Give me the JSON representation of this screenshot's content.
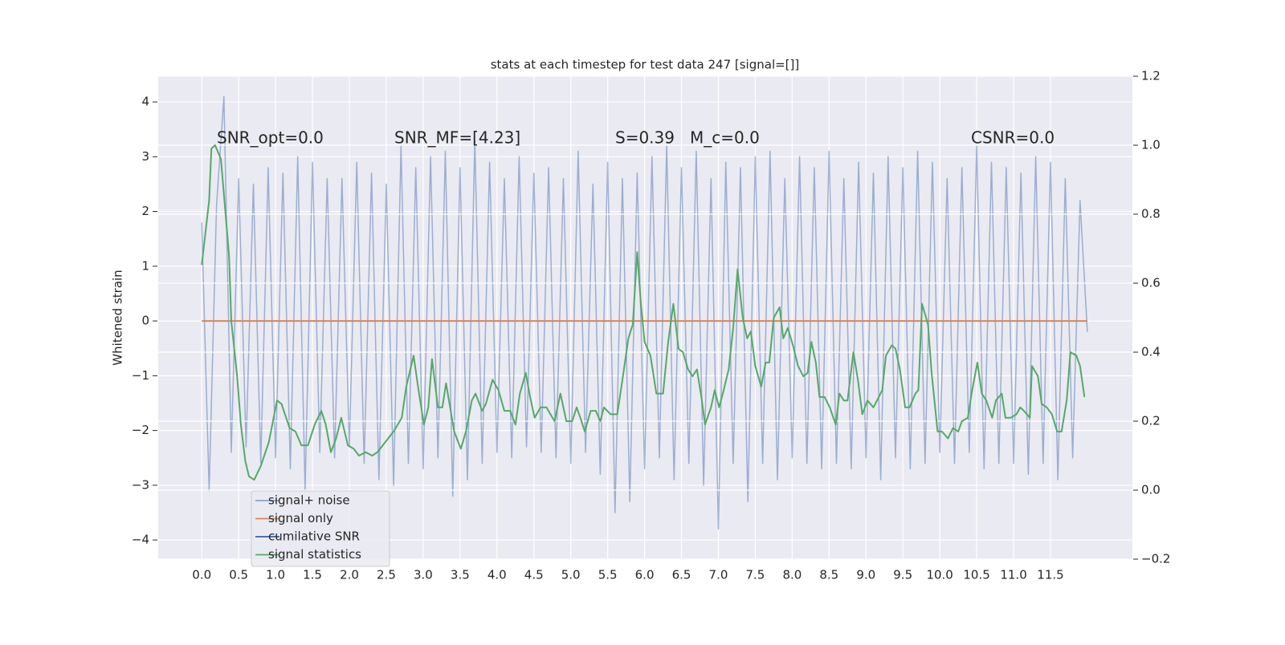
{
  "chart_data": {
    "type": "line",
    "title": "stats at each timestep for test data 247 [signal=[]]",
    "y_label": "Whitened strain",
    "annotations": [
      "SNR_opt=0.0",
      "SNR_MF=[4.23]",
      "S=0.39",
      "M_c=0.0",
      "CSNR=0.0"
    ],
    "background": "#eaeaf2",
    "grid": true,
    "legend_loc": "lower left",
    "xlim": [
      -0.59,
      12.61
    ],
    "ylim": [
      -4.35,
      4.47
    ],
    "y2lim": [
      -0.2,
      1.2
    ],
    "xticks": [
      {
        "value": 0,
        "label": "0.0"
      },
      0.5,
      {
        "value": 1,
        "label": "1.0"
      },
      1.5,
      {
        "value": 2,
        "label": "2.0"
      },
      2.5,
      {
        "value": 3,
        "label": "3.0"
      },
      3.5,
      {
        "value": 4,
        "label": "4.0"
      },
      4.5,
      {
        "value": 5,
        "label": "5.0"
      },
      5.5,
      {
        "value": 6,
        "label": "6.0"
      },
      6.5,
      {
        "value": 7,
        "label": "7.0"
      },
      7.5,
      {
        "value": 8,
        "label": "8.0"
      },
      8.5,
      {
        "value": 9,
        "label": "9.0"
      },
      9.5,
      {
        "value": 10,
        "label": "10.0"
      },
      10.5,
      {
        "value": 11,
        "label": "11.0"
      },
      11.5
    ],
    "yticks": [
      {
        "value": -4,
        "label": "−4"
      },
      {
        "value": -3,
        "label": "−3"
      },
      {
        "value": -2,
        "label": "−2"
      },
      {
        "value": -1,
        "label": "−1"
      },
      0,
      1,
      2,
      3,
      4
    ],
    "y2ticks": [
      {
        "value": -0.2,
        "label": "−0.2"
      },
      {
        "value": 0,
        "label": "0.0"
      },
      0.2,
      0.4,
      0.6,
      0.8,
      {
        "value": 1,
        "label": "1.0"
      },
      1.2
    ],
    "series": [
      {
        "name": "signal+ noise",
        "color": "#4c72b0",
        "x": [
          0,
          0.1,
          0.2,
          0.3,
          0.4,
          0.5,
          0.6,
          0.7,
          0.8,
          0.9,
          1,
          1.1,
          1.2,
          1.3,
          1.4,
          1.5,
          1.6,
          1.7,
          1.8,
          1.9,
          2,
          2.1,
          2.2,
          2.3,
          2.4,
          2.5,
          2.6,
          2.7,
          2.8,
          2.9,
          3,
          3.1,
          3.2,
          3.3,
          3.4,
          3.5,
          3.6,
          3.7,
          3.8,
          3.9,
          4,
          4.1,
          4.2,
          4.3,
          4.4,
          4.5,
          4.6,
          4.7,
          4.8,
          4.9,
          5,
          5.1,
          5.2,
          5.3,
          5.4,
          5.5,
          5.6,
          5.7,
          5.8,
          5.9,
          6,
          6.1,
          6.2,
          6.3,
          6.4,
          6.5,
          6.6,
          6.7,
          6.8,
          6.9,
          7,
          7.1,
          7.2,
          7.3,
          7.4,
          7.5,
          7.6,
          7.7,
          7.8,
          7.9,
          8,
          8.1,
          8.2,
          8.3,
          8.4,
          8.5,
          8.6,
          8.7,
          8.8,
          8.9,
          9,
          9.1,
          9.2,
          9.3,
          9.4,
          9.5,
          9.6,
          9.7,
          9.8,
          9.9,
          10,
          10.1,
          10.2,
          10.3,
          10.4,
          10.5,
          10.6,
          10.7,
          10.8,
          10.9,
          11,
          11.1,
          11.2,
          11.3,
          11.4,
          11.5,
          11.6,
          11.7,
          11.8,
          11.9,
          12
        ],
        "values": [
          1.8,
          -3.1,
          2.1,
          4.1,
          -2.4,
          2.6,
          -2.3,
          2.5,
          -2.6,
          2.8,
          -2.5,
          2.7,
          -2.7,
          3.0,
          -3.1,
          2.9,
          -2.4,
          2.6,
          -2.5,
          2.6,
          -2.3,
          2.9,
          -2.6,
          2.7,
          -2.9,
          2.5,
          -3.0,
          3.2,
          -2.6,
          2.8,
          -2.7,
          3.0,
          -2.5,
          3.1,
          -3.2,
          2.8,
          -2.9,
          3.3,
          -2.6,
          2.9,
          -2.4,
          2.6,
          -2.5,
          3.0,
          -2.3,
          2.7,
          -2.4,
          2.8,
          -2.5,
          2.6,
          -2.6,
          3.1,
          -2.4,
          2.5,
          -2.8,
          2.9,
          -3.5,
          2.6,
          -3.3,
          2.7,
          -2.7,
          3.0,
          -2.5,
          3.2,
          -2.9,
          2.8,
          -2.6,
          3.1,
          -3.0,
          2.6,
          -3.8,
          2.9,
          -2.6,
          2.8,
          -3.3,
          3.0,
          -2.6,
          3.1,
          -2.9,
          2.6,
          -2.5,
          3.0,
          -2.6,
          2.8,
          -2.7,
          3.1,
          -2.6,
          2.6,
          -2.7,
          2.9,
          -2.5,
          2.7,
          -2.9,
          3.0,
          -2.5,
          2.8,
          -2.7,
          3.1,
          -2.6,
          2.9,
          -2.4,
          2.6,
          -2.6,
          2.8,
          -2.4,
          3.2,
          -2.7,
          2.9,
          -2.6,
          2.8,
          -2.6,
          2.7,
          -2.8,
          3.0,
          -2.6,
          2.9,
          -2.9,
          2.6,
          -2.5,
          2.2,
          -0.2
        ]
      },
      {
        "name": "signal only",
        "color": "#dd8452",
        "x": [
          0,
          12
        ],
        "values": [
          0,
          0
        ]
      },
      {
        "name": "cumilative SNR",
        "color": "#3b5ca8",
        "x": [],
        "values": []
      },
      {
        "name": "signal statistics",
        "color": "#55a868",
        "axis": "y2",
        "x": [
          0,
          0.1,
          0.13,
          0.18,
          0.26,
          0.37,
          0.4,
          0.48,
          0.53,
          0.59,
          0.64,
          0.71,
          0.8,
          0.91,
          1.02,
          1.08,
          1.19,
          1.27,
          1.35,
          1.44,
          1.53,
          1.62,
          1.68,
          1.75,
          1.82,
          1.89,
          1.98,
          2.06,
          2.13,
          2.22,
          2.31,
          2.38,
          2.49,
          2.6,
          2.71,
          2.77,
          2.87,
          2.93,
          3.01,
          3.07,
          3.12,
          3.2,
          3.26,
          3.31,
          3.42,
          3.51,
          3.58,
          3.66,
          3.71,
          3.8,
          3.85,
          3.94,
          4.02,
          4.1,
          4.18,
          4.25,
          4.31,
          4.39,
          4.45,
          4.51,
          4.59,
          4.67,
          4.78,
          4.86,
          4.94,
          5.02,
          5.08,
          5.13,
          5.19,
          5.27,
          5.34,
          5.4,
          5.45,
          5.54,
          5.63,
          5.7,
          5.78,
          5.84,
          5.9,
          5.95,
          6.0,
          6.08,
          6.16,
          6.25,
          6.32,
          6.39,
          6.46,
          6.52,
          6.59,
          6.65,
          6.71,
          6.77,
          6.82,
          6.9,
          6.95,
          7.01,
          7.06,
          7.14,
          7.2,
          7.26,
          7.33,
          7.39,
          7.44,
          7.5,
          7.58,
          7.64,
          7.69,
          7.75,
          7.83,
          7.88,
          7.94,
          8.01,
          8.08,
          8.15,
          8.21,
          8.26,
          8.32,
          8.37,
          8.44,
          8.51,
          8.59,
          8.64,
          8.7,
          8.75,
          8.83,
          8.89,
          8.95,
          9.02,
          9.1,
          9.15,
          9.22,
          9.27,
          9.35,
          9.4,
          9.46,
          9.53,
          9.59,
          9.67,
          9.71,
          9.76,
          9.84,
          9.89,
          9.97,
          10.03,
          10.11,
          10.18,
          10.25,
          10.3,
          10.38,
          10.43,
          10.51,
          10.57,
          10.63,
          10.71,
          10.76,
          10.84,
          10.89,
          10.96,
          11.04,
          11.09,
          11.14,
          11.22,
          11.25,
          11.33,
          11.38,
          11.45,
          11.52,
          11.59,
          11.65,
          11.72,
          11.77,
          11.85,
          11.9,
          11.96
        ],
        "values": [
          0.653,
          0.84,
          0.99,
          1.0,
          0.96,
          0.68,
          0.49,
          0.33,
          0.19,
          0.085,
          0.04,
          0.03,
          0.07,
          0.14,
          0.26,
          0.25,
          0.18,
          0.17,
          0.13,
          0.13,
          0.19,
          0.23,
          0.19,
          0.11,
          0.15,
          0.21,
          0.13,
          0.12,
          0.1,
          0.11,
          0.1,
          0.11,
          0.14,
          0.17,
          0.21,
          0.3,
          0.39,
          0.3,
          0.19,
          0.24,
          0.38,
          0.24,
          0.24,
          0.31,
          0.17,
          0.12,
          0.17,
          0.26,
          0.28,
          0.23,
          0.25,
          0.32,
          0.29,
          0.23,
          0.23,
          0.19,
          0.28,
          0.34,
          0.27,
          0.21,
          0.24,
          0.24,
          0.2,
          0.28,
          0.2,
          0.2,
          0.24,
          0.21,
          0.17,
          0.23,
          0.23,
          0.2,
          0.24,
          0.22,
          0.22,
          0.32,
          0.44,
          0.48,
          0.69,
          0.54,
          0.43,
          0.39,
          0.28,
          0.28,
          0.43,
          0.54,
          0.41,
          0.4,
          0.35,
          0.33,
          0.35,
          0.27,
          0.19,
          0.24,
          0.29,
          0.24,
          0.28,
          0.35,
          0.47,
          0.64,
          0.5,
          0.44,
          0.46,
          0.36,
          0.3,
          0.37,
          0.37,
          0.5,
          0.53,
          0.44,
          0.47,
          0.42,
          0.36,
          0.33,
          0.34,
          0.43,
          0.37,
          0.27,
          0.27,
          0.24,
          0.19,
          0.28,
          0.26,
          0.26,
          0.4,
          0.32,
          0.22,
          0.26,
          0.24,
          0.26,
          0.29,
          0.39,
          0.42,
          0.41,
          0.35,
          0.24,
          0.24,
          0.28,
          0.29,
          0.54,
          0.48,
          0.34,
          0.17,
          0.17,
          0.15,
          0.18,
          0.17,
          0.2,
          0.21,
          0.28,
          0.37,
          0.28,
          0.26,
          0.21,
          0.26,
          0.28,
          0.21,
          0.21,
          0.22,
          0.24,
          0.23,
          0.21,
          0.36,
          0.33,
          0.25,
          0.24,
          0.22,
          0.17,
          0.17,
          0.26,
          0.4,
          0.39,
          0.36,
          0.27
        ]
      }
    ]
  }
}
